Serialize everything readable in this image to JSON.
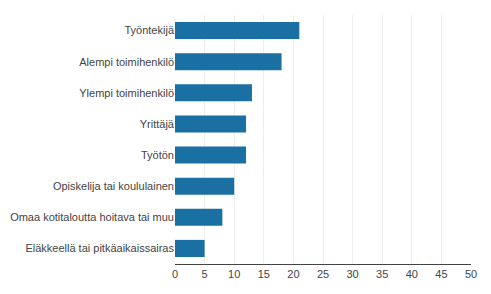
{
  "chart_data": {
    "type": "bar",
    "orientation": "horizontal",
    "categories": [
      "Työntekijä",
      "Alempi toimihenkilö",
      "Ylempi toimihenkilö",
      "Yrittäjä",
      "Työtön",
      "Opiskelija tai koululainen",
      "Omaa kotitaloutta hoitava tai muu",
      "Eläkkeellä tai pitkäaikaissairas"
    ],
    "values": [
      21,
      18,
      13,
      12,
      12,
      10,
      8,
      5
    ],
    "color": "#1a6fa3",
    "xlim": [
      0,
      50
    ],
    "xticks": [
      0,
      5,
      10,
      15,
      20,
      25,
      30,
      35,
      40,
      45,
      50
    ],
    "grid": true
  }
}
